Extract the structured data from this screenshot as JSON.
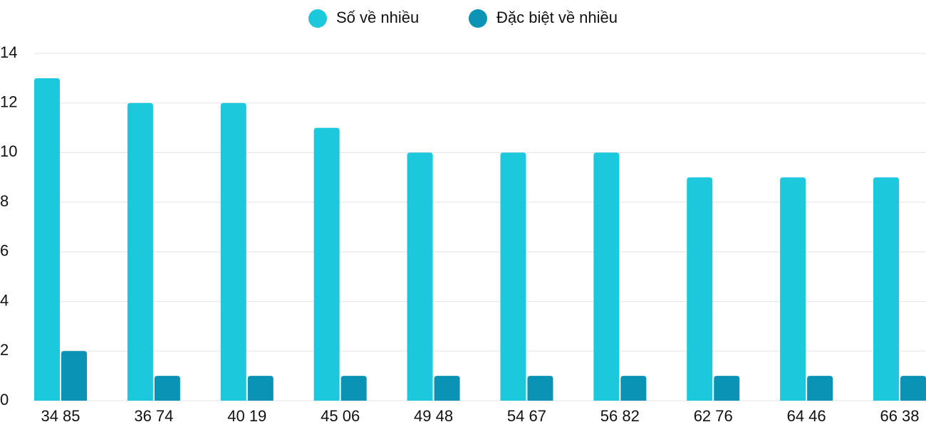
{
  "chart_data": {
    "type": "bar",
    "categories": [
      "34 85",
      "36 74",
      "40 19",
      "45 06",
      "49 48",
      "54 67",
      "56 82",
      "62 76",
      "64 46",
      "66 38"
    ],
    "series": [
      {
        "name": "Số về nhiều",
        "color": "#1bc8dc",
        "values": [
          13,
          12,
          12,
          11,
          10,
          10,
          10,
          9,
          9,
          9
        ]
      },
      {
        "name": "Đặc biệt về nhiều",
        "color": "#0a93b5",
        "values": [
          2,
          1,
          1,
          1,
          1,
          1,
          1,
          1,
          1,
          1
        ]
      }
    ],
    "ylim": [
      0,
      14
    ],
    "yticks": [
      0,
      2,
      4,
      6,
      8,
      10,
      12,
      14
    ],
    "grid": true,
    "legend": "top"
  }
}
